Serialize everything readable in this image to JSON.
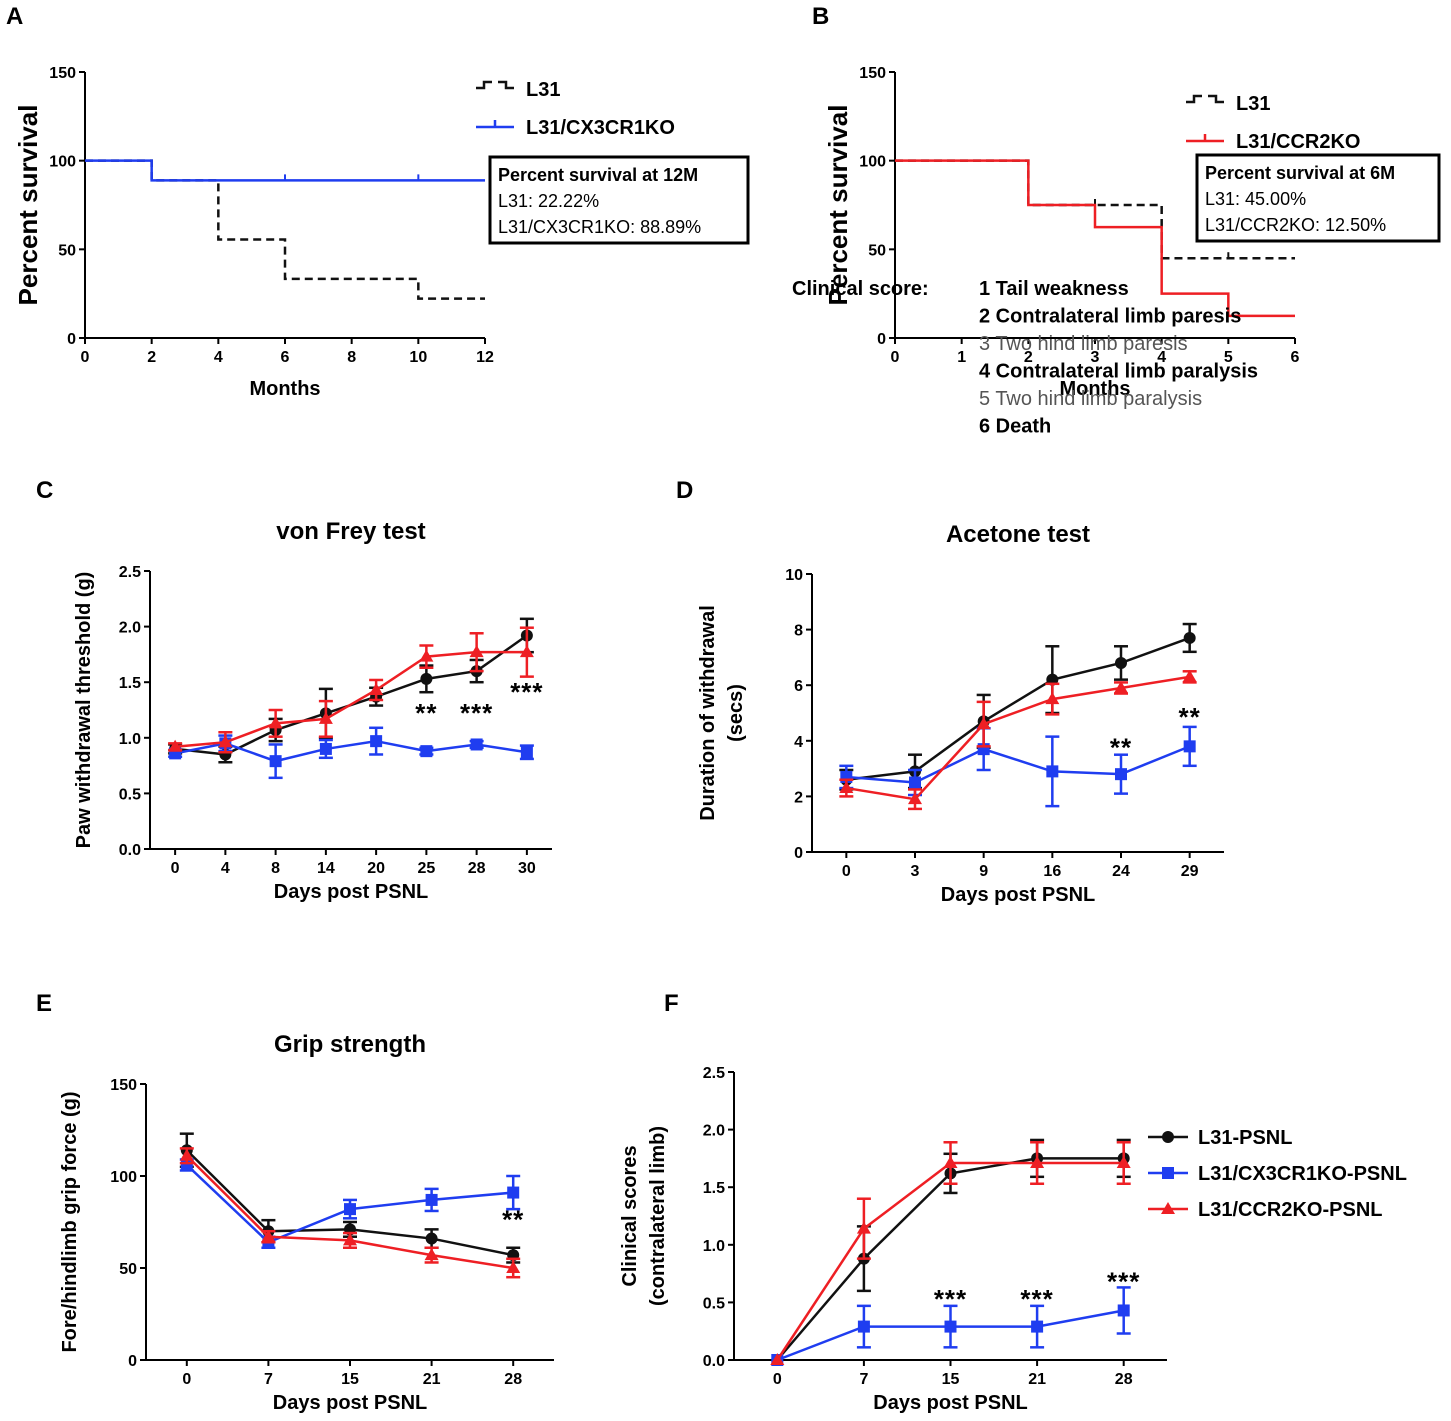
{
  "colors": {
    "black": "#111111",
    "blue": "#1f3df0",
    "red": "#ee1f24"
  },
  "chart_data": [
    {
      "panel": "A",
      "type": "line",
      "subtype": "kaplan-meier",
      "xlabel": "Months",
      "ylabel": "Percent survival",
      "xlim": [
        0,
        12
      ],
      "ylim": [
        0,
        150
      ],
      "xticks": [
        0,
        2,
        4,
        6,
        8,
        10,
        12
      ],
      "yticks": [
        0,
        50,
        100,
        150
      ],
      "series": [
        {
          "name": "L31",
          "color": "#111111",
          "style": "dashed",
          "steps": [
            [
              0,
              100
            ],
            [
              2,
              88.89
            ],
            [
              4,
              55.56
            ],
            [
              6,
              33.33
            ],
            [
              10,
              22.22
            ],
            [
              12,
              22.22
            ]
          ],
          "censor": []
        },
        {
          "name": "L31/CX3CR1KO",
          "color": "#1f3df0",
          "style": "solid",
          "steps": [
            [
              0,
              100
            ],
            [
              2,
              88.89
            ],
            [
              12,
              88.89
            ]
          ],
          "censor": [
            6,
            10
          ]
        }
      ],
      "legend": [
        "L31",
        "L31/CX3CR1KO"
      ],
      "box": {
        "title": "Percent survival at 12M",
        "lines": [
          "L31: 22.22%",
          "L31/CX3CR1KO: 88.89%"
        ]
      }
    },
    {
      "panel": "B",
      "type": "line",
      "subtype": "kaplan-meier",
      "xlabel": "Months",
      "ylabel": "Percent survival",
      "xlim": [
        0,
        6
      ],
      "ylim": [
        0,
        150
      ],
      "xticks": [
        0,
        1,
        2,
        3,
        4,
        5,
        6
      ],
      "yticks": [
        0,
        50,
        100,
        150
      ],
      "series": [
        {
          "name": "L31",
          "color": "#111111",
          "style": "dashed",
          "steps": [
            [
              0,
              100
            ],
            [
              2,
              75
            ],
            [
              4,
              45
            ],
            [
              6,
              45
            ]
          ],
          "censor": [
            3,
            5
          ]
        },
        {
          "name": "L31/CCR2KO",
          "color": "#ee1f24",
          "style": "solid",
          "steps": [
            [
              0,
              100
            ],
            [
              2,
              75
            ],
            [
              3,
              62.5
            ],
            [
              4,
              25
            ],
            [
              5,
              12.5
            ],
            [
              6,
              12.5
            ]
          ],
          "censor": []
        }
      ],
      "legend": [
        "L31",
        "L31/CCR2KO"
      ],
      "box": {
        "title": "Percent survival at 6M",
        "lines": [
          "L31: 45.00%",
          "L31/CCR2KO: 12.50%"
        ]
      }
    },
    {
      "panel": "C",
      "type": "line",
      "title": "von Frey test",
      "xlabel": "Days post PSNL",
      "ylabel": "Paw withdrawal threshold (g)",
      "categories": [
        "0",
        "4",
        "8",
        "14",
        "20",
        "25",
        "28",
        "30"
      ],
      "ylim": [
        0,
        2.5
      ],
      "yticks": [
        "0.0",
        "0.5",
        "1.0",
        "1.5",
        "2.0",
        "2.5"
      ],
      "series": [
        {
          "name": "L31-PSNL",
          "color": "#111111",
          "marker": "circle",
          "values": [
            0.9,
            0.85,
            1.07,
            1.22,
            1.37,
            1.53,
            1.6,
            1.92
          ],
          "errors": [
            0.04,
            0.07,
            0.1,
            0.22,
            0.08,
            0.12,
            0.1,
            0.15
          ]
        },
        {
          "name": "L31/CX3CR1KO-PSNL",
          "color": "#1f3df0",
          "marker": "square",
          "values": [
            0.86,
            0.95,
            0.79,
            0.9,
            0.97,
            0.88,
            0.94,
            0.87
          ],
          "errors": [
            0.03,
            0.07,
            0.15,
            0.08,
            0.12,
            0.03,
            0.03,
            0.06
          ]
        },
        {
          "name": "L31/CCR2KO-PSNL",
          "color": "#ee1f24",
          "marker": "triangle",
          "values": [
            0.92,
            0.96,
            1.13,
            1.17,
            1.43,
            1.73,
            1.77,
            1.77
          ],
          "errors": [
            0.03,
            0.09,
            0.12,
            0.16,
            0.09,
            0.1,
            0.17,
            0.22
          ]
        }
      ],
      "annotations": [
        {
          "x": "25",
          "y": 1.23,
          "text": "**"
        },
        {
          "x": "28",
          "y": 1.23,
          "text": "***"
        },
        {
          "x": "30",
          "y": 1.42,
          "text": "***"
        }
      ]
    },
    {
      "panel": "D",
      "type": "line",
      "title": "Acetone test",
      "xlabel": "Days post PSNL",
      "ylabel": "Duration of withdrawal (secs)",
      "ylabel_lines": [
        "Duration of withdrawal",
        "(secs)"
      ],
      "categories": [
        "0",
        "3",
        "9",
        "16",
        "24",
        "29"
      ],
      "ylim": [
        0,
        10
      ],
      "yticks": [
        "0",
        "2",
        "4",
        "6",
        "8",
        "10"
      ],
      "series": [
        {
          "name": "L31-PSNL",
          "color": "#111111",
          "marker": "circle",
          "values": [
            2.6,
            2.9,
            4.7,
            6.2,
            6.8,
            7.7
          ],
          "errors": [
            0.35,
            0.6,
            0.95,
            1.2,
            0.6,
            0.5
          ]
        },
        {
          "name": "L31/CX3CR1KO-PSNL",
          "color": "#1f3df0",
          "marker": "square",
          "values": [
            2.7,
            2.5,
            3.7,
            2.9,
            2.8,
            3.8
          ],
          "errors": [
            0.4,
            0.45,
            0.75,
            1.25,
            0.7,
            0.7
          ]
        },
        {
          "name": "L31/CCR2KO-PSNL",
          "color": "#ee1f24",
          "marker": "triangle",
          "values": [
            2.3,
            1.9,
            4.6,
            5.5,
            5.9,
            6.3
          ],
          "errors": [
            0.3,
            0.35,
            0.8,
            0.55,
            0.2,
            0.2
          ]
        }
      ],
      "annotations": [
        {
          "x": "24",
          "y": 3.8,
          "text": "**"
        },
        {
          "x": "29",
          "y": 4.9,
          "text": "**"
        }
      ]
    },
    {
      "panel": "E",
      "type": "line",
      "title": "Grip strength",
      "xlabel": "Days post PSNL",
      "ylabel": "Fore/hindlimb grip force (g)",
      "categories": [
        "0",
        "7",
        "15",
        "21",
        "28"
      ],
      "ylim": [
        0,
        150
      ],
      "yticks": [
        "0",
        "50",
        "100",
        "150"
      ],
      "series": [
        {
          "name": "L31-PSNL",
          "color": "#111111",
          "marker": "circle",
          "values": [
            114,
            70,
            71,
            66,
            57
          ],
          "errors": [
            9,
            6,
            4,
            5,
            4
          ]
        },
        {
          "name": "L31/CX3CR1KO-PSNL",
          "color": "#1f3df0",
          "marker": "square",
          "values": [
            106,
            64,
            82,
            87,
            91
          ],
          "errors": [
            3,
            3,
            5,
            6,
            9
          ]
        },
        {
          "name": "L31/CCR2KO-PSNL",
          "color": "#ee1f24",
          "marker": "triangle",
          "values": [
            111,
            67,
            65,
            57,
            50
          ],
          "errors": [
            4,
            3,
            4,
            4,
            5
          ]
        }
      ],
      "annotations": [
        {
          "x": "28",
          "y": 77,
          "text": "**"
        }
      ]
    },
    {
      "panel": "F",
      "type": "line",
      "xlabel": "Days post PSNL",
      "ylabel": "Clinical scores (contralateral limb)",
      "ylabel_lines": [
        "Clinical scores",
        "(contralateral limb)"
      ],
      "categories": [
        "0",
        "7",
        "15",
        "21",
        "28"
      ],
      "ylim": [
        0,
        2.5
      ],
      "yticks": [
        "0.0",
        "0.5",
        "1.0",
        "1.5",
        "2.0",
        "2.5"
      ],
      "series": [
        {
          "name": "L31-PSNL",
          "color": "#111111",
          "marker": "circle",
          "values": [
            0,
            0.88,
            1.62,
            1.75,
            1.75
          ],
          "errors": [
            0,
            0.28,
            0.17,
            0.16,
            0.16
          ]
        },
        {
          "name": "L31/CX3CR1KO-PSNL",
          "color": "#1f3df0",
          "marker": "square",
          "values": [
            0,
            0.29,
            0.29,
            0.29,
            0.43
          ],
          "errors": [
            0,
            0.18,
            0.18,
            0.18,
            0.2
          ]
        },
        {
          "name": "L31/CCR2KO-PSNL",
          "color": "#ee1f24",
          "marker": "triangle",
          "values": [
            0,
            1.14,
            1.71,
            1.71,
            1.71
          ],
          "errors": [
            0,
            0.26,
            0.18,
            0.18,
            0.18
          ]
        }
      ],
      "annotations": [
        {
          "x": "15",
          "y": 0.54,
          "text": "***"
        },
        {
          "x": "21",
          "y": 0.54,
          "text": "***"
        },
        {
          "x": "28",
          "y": 0.69,
          "text": "***"
        }
      ],
      "legend": [
        "L31-PSNL",
        "L31/CX3CR1KO-PSNL",
        "L31/CCR2KO-PSNL"
      ],
      "clinical_score": {
        "label": "Clinical score:",
        "items": [
          {
            "text": "1 Tail weakness",
            "emphasis": "bold"
          },
          {
            "text": "2 Contralateral limb paresis",
            "emphasis": "bold"
          },
          {
            "text": "3 Two hind limb paresis",
            "emphasis": "gray"
          },
          {
            "text": "4 Contralateral limb paralysis",
            "emphasis": "bold"
          },
          {
            "text": "5 Two hind limb paralysis",
            "emphasis": "gray"
          },
          {
            "text": "6 Death",
            "emphasis": "bold"
          }
        ]
      }
    }
  ]
}
